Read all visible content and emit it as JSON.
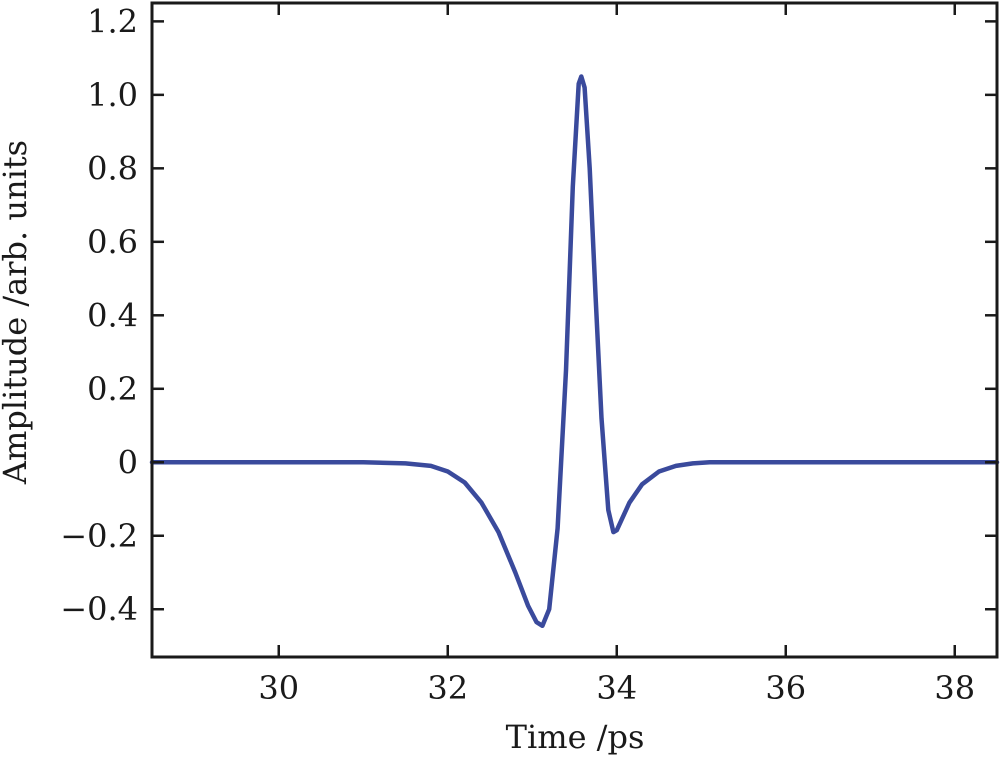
{
  "chart_data": {
    "type": "line",
    "title": "",
    "xlabel": "Time /ps",
    "ylabel": "Amplitude /arb. units",
    "xlim": [
      28.5,
      38.5
    ],
    "ylim": [
      -0.53,
      1.25
    ],
    "xticks": [
      30,
      32,
      34,
      36,
      38
    ],
    "xtick_labels": [
      "30",
      "32",
      "34",
      "36",
      "38"
    ],
    "yticks": [
      -0.4,
      -0.2,
      0,
      0.2,
      0.4,
      0.6,
      0.8,
      1.0,
      1.2
    ],
    "ytick_labels": [
      "−0.4",
      "−0.2",
      "0",
      "0.2",
      "0.4",
      "0.6",
      "0.8",
      "1.0",
      "1.2"
    ],
    "grid": false,
    "legend": "none",
    "series": [
      {
        "color": "#3a4a9c",
        "x": [
          28.5,
          30.0,
          31.0,
          31.5,
          31.8,
          32.0,
          32.2,
          32.4,
          32.6,
          32.8,
          32.95,
          33.05,
          33.12,
          33.2,
          33.3,
          33.4,
          33.48,
          33.55,
          33.58,
          33.62,
          33.68,
          33.75,
          33.82,
          33.9,
          33.96,
          34.0,
          34.05,
          34.15,
          34.3,
          34.5,
          34.7,
          34.9,
          35.1,
          35.5,
          36.0,
          38.5
        ],
        "y": [
          0.0,
          0.0,
          0.0,
          -0.003,
          -0.01,
          -0.025,
          -0.055,
          -0.11,
          -0.19,
          -0.3,
          -0.39,
          -0.435,
          -0.445,
          -0.4,
          -0.18,
          0.25,
          0.75,
          1.03,
          1.05,
          1.02,
          0.8,
          0.45,
          0.12,
          -0.13,
          -0.19,
          -0.185,
          -0.16,
          -0.11,
          -0.06,
          -0.025,
          -0.01,
          -0.003,
          0.0,
          0.0,
          0.0,
          0.0
        ]
      }
    ]
  }
}
